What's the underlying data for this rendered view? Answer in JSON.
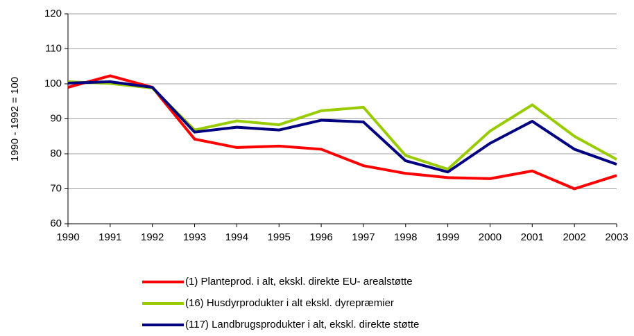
{
  "chart_data": {
    "type": "line",
    "y_axis_label": "1990 - 1992 = 100",
    "categories": [
      "1990",
      "1991",
      "1992",
      "1993",
      "1994",
      "1995",
      "1996",
      "1997",
      "1998",
      "1999",
      "2000",
      "2001",
      "2002",
      "2003"
    ],
    "series": [
      {
        "name": "(1)  Planteprod. i alt,  ekskl. direkte EU- arealstøtte",
        "color": "#ff0000",
        "values": [
          99,
          102.3,
          99,
          84.2,
          81.8,
          82.2,
          81.3,
          76.6,
          74.4,
          73.2,
          72.9,
          75.1,
          70,
          73.8
        ]
      },
      {
        "name": "(16) Husdyrprodukter i alt ekskl. dyrepræmier",
        "color": "#99cc00",
        "values": [
          100.6,
          100.1,
          98.8,
          86.8,
          89.4,
          88.3,
          92.3,
          93.3,
          79.5,
          75.6,
          86.5,
          94,
          85,
          78.4
        ]
      },
      {
        "name": "(117) Landbrugsprodukter i alt, ekskl. direkte støtte",
        "color": "#000080",
        "values": [
          100.2,
          100.6,
          99,
          86.2,
          87.6,
          86.8,
          89.6,
          89.1,
          78,
          74.8,
          83,
          89.3,
          81.3,
          77
        ]
      }
    ],
    "ylim": [
      60,
      120
    ],
    "yticks": [
      60,
      70,
      80,
      90,
      100,
      110,
      120
    ],
    "grid": true
  }
}
